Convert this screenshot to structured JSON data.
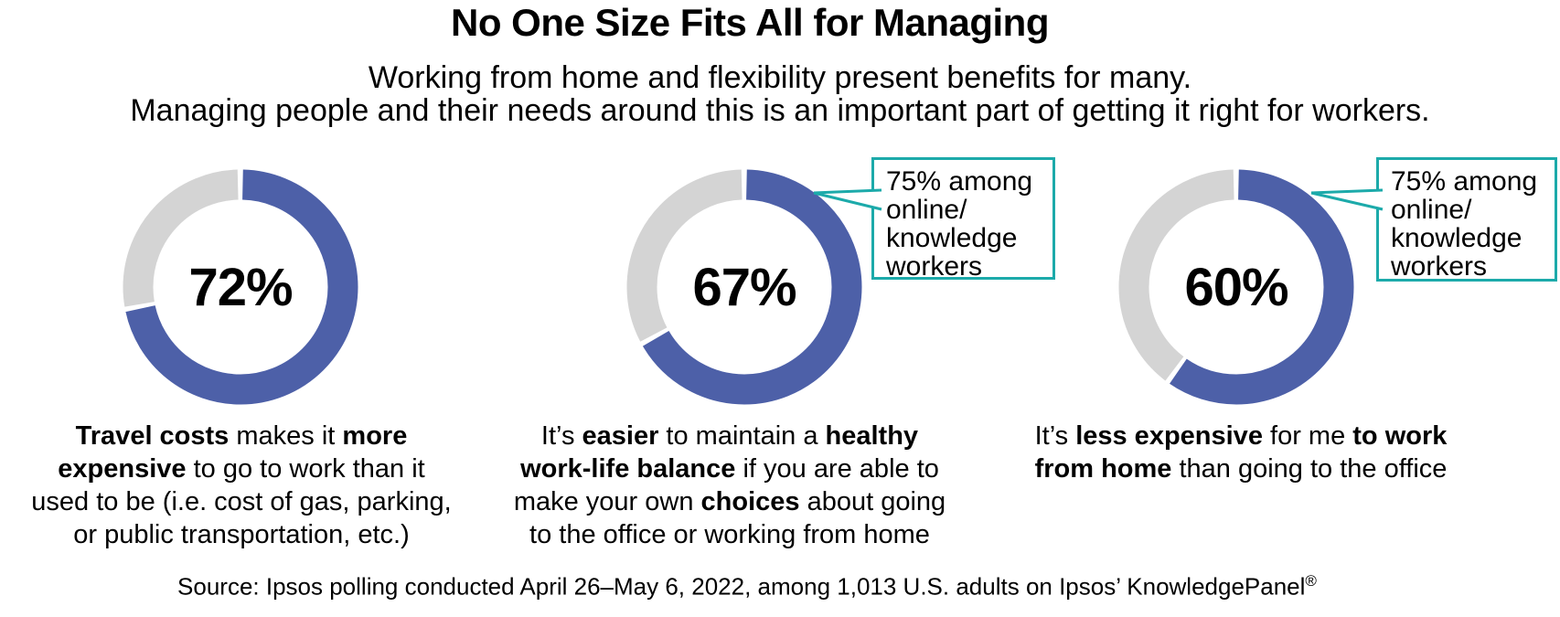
{
  "header": {
    "title": "No One Size Fits All for Managing",
    "subtitle_lines": [
      "Working from home and flexibility present benefits for many.",
      "Managing people and their needs around this is an important part of getting it right for workers."
    ]
  },
  "chart_data": {
    "type": "pie",
    "subtype": "donut-small-multiples",
    "title": "No One Size Fits All for Managing",
    "subtitle": "Working from home and flexibility present benefits for many. Managing people and their needs around this is an important part of getting it right for workers.",
    "start_angle_deg": 0,
    "direction": "clockwise",
    "legend": null,
    "colors": {
      "value_segment": "#4D60A8",
      "track_segment": "#D4D4D4",
      "callout_border": "#1CAAAA",
      "text": "#000000",
      "background": "#FFFFFF"
    },
    "donuts": [
      {
        "value": 72,
        "remainder": 28,
        "center_label": "72%",
        "caption": "Travel costs makes it more expensive to go to work than it used to be (i.e. cost of gas, parking, or public transportation, etc.)",
        "caption_lines": [
          [
            {
              "t": "Travel costs",
              "b": true
            },
            {
              "t": " makes it ",
              "b": false
            },
            {
              "t": "more",
              "b": true
            }
          ],
          [
            {
              "t": "expensive",
              "b": true
            },
            {
              "t": " to go to work than it",
              "b": false
            }
          ],
          [
            {
              "t": "used to be (i.e. cost of gas, parking,",
              "b": false
            }
          ],
          [
            {
              "t": "or public transportation, etc.)",
              "b": false
            }
          ]
        ],
        "callout": null
      },
      {
        "value": 67,
        "remainder": 33,
        "center_label": "67%",
        "caption": "It’s easier to maintain a healthy work-life balance if you are able to make your own choices about going to the office or working from home",
        "caption_lines": [
          [
            {
              "t": "It’s ",
              "b": false
            },
            {
              "t": "easier",
              "b": true
            },
            {
              "t": " to maintain a ",
              "b": false
            },
            {
              "t": "healthy",
              "b": true
            }
          ],
          [
            {
              "t": "work-life balance",
              "b": true
            },
            {
              "t": " if you are able to",
              "b": false
            }
          ],
          [
            {
              "t": "make your own ",
              "b": false
            },
            {
              "t": "choices",
              "b": true
            },
            {
              "t": " about going",
              "b": false
            }
          ],
          [
            {
              "t": "to the office or working from home",
              "b": false
            }
          ]
        ],
        "callout": {
          "text": "75% among online/knowledge workers",
          "lines": [
            "75% among",
            "online/",
            "knowledge",
            "workers"
          ]
        }
      },
      {
        "value": 60,
        "remainder": 40,
        "center_label": "60%",
        "caption": "It’s less expensive for me to work from home than going to the office",
        "caption_lines": [
          [
            {
              "t": "It’s ",
              "b": false
            },
            {
              "t": "less expensive",
              "b": true
            },
            {
              "t": " for me ",
              "b": false
            },
            {
              "t": "to work",
              "b": true
            }
          ],
          [
            {
              "t": "from home",
              "b": true
            },
            {
              "t": " than going to the office",
              "b": false
            }
          ]
        ],
        "callout": {
          "text": "75% among online/knowledge workers",
          "lines": [
            "75% among",
            "online/",
            "knowledge",
            "workers"
          ]
        }
      }
    ]
  },
  "footer": {
    "source_text": "Source: Ipsos polling conducted April 26–May 6, 2022, among 1,013 U.S. adults on Ipsos’ KnowledgePanel",
    "registered_mark": "®"
  }
}
